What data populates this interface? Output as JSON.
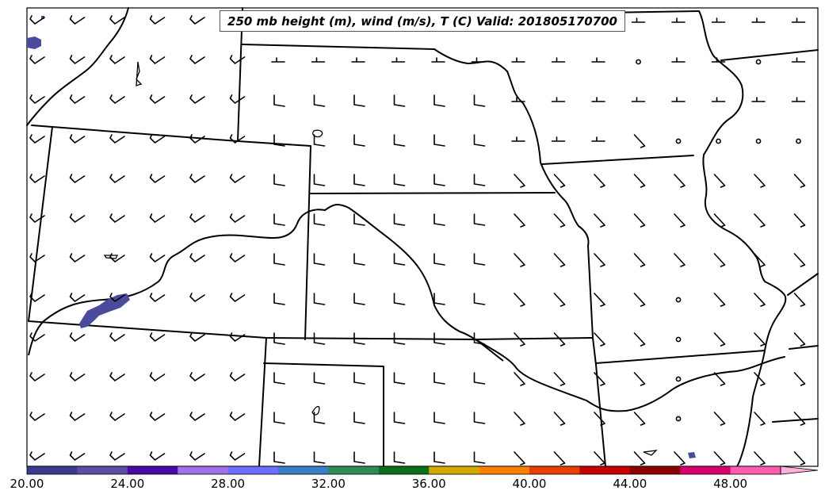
{
  "title": "250 mb height (m), wind (m/s), T (C) Valid: 201805170700",
  "colorbar": {
    "labels": [
      "20.00",
      "24.00",
      "28.00",
      "32.00",
      "36.00",
      "40.00",
      "44.00",
      "48.00"
    ],
    "colors": [
      "#3b3b8f",
      "#5a4fa0",
      "#4b0aa5",
      "#a070e6",
      "#6f6fff",
      "#3a7ec8",
      "#2e8b57",
      "#0b6e1a",
      "#d4aa00",
      "#ff8000",
      "#e83e00",
      "#c40000",
      "#8b0000",
      "#d6006a",
      "#ff5cb0",
      "#ffb0d8"
    ]
  },
  "temperature_shading_color": "#4b4b9e"
}
